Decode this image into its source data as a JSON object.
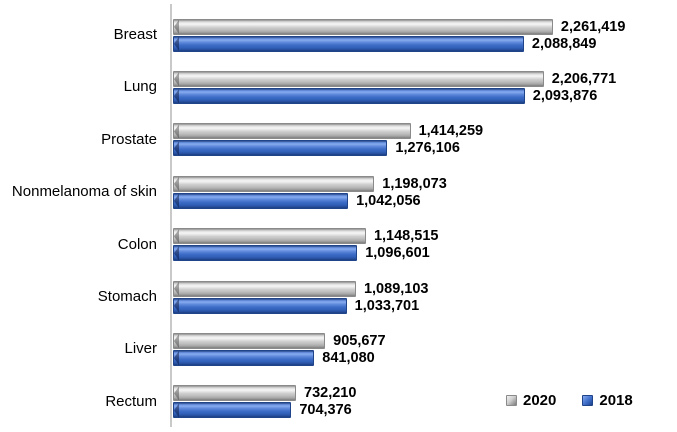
{
  "chart_data": {
    "type": "bar",
    "orientation": "horizontal",
    "title": "",
    "xlabel": "",
    "ylabel": "",
    "xlim": [
      0,
      3000000
    ],
    "grid": false,
    "legend_position": "bottom-right",
    "categories": [
      "Breast",
      "Lung",
      "Prostate",
      "Nonmelanoma of skin",
      "Colon",
      "Stomach",
      "Liver",
      "Rectum"
    ],
    "series": [
      {
        "name": "2020",
        "color": "#bfbfbf",
        "values": [
          2261419,
          2206771,
          1414259,
          1198073,
          1148515,
          1089103,
          905677,
          732210
        ],
        "labels": [
          "2,261,419",
          "2,206,771",
          "1,414,259",
          "1,198,073",
          "1,148,515",
          "1,089,103",
          "905,677",
          "732,210"
        ]
      },
      {
        "name": "2018",
        "color": "#3e6dc8",
        "values": [
          2088849,
          2093876,
          1276106,
          1042056,
          1096601,
          1033701,
          841080,
          704376
        ],
        "labels": [
          "2,088,849",
          "2,093,876",
          "1,276,106",
          "1,042,056",
          "1,096,601",
          "1,033,701",
          "841,080",
          "704,376"
        ]
      }
    ]
  },
  "legend": {
    "items": [
      {
        "label": "2020",
        "color": "#bfbfbf"
      },
      {
        "label": "2018",
        "color": "#3e6dc8"
      }
    ]
  }
}
